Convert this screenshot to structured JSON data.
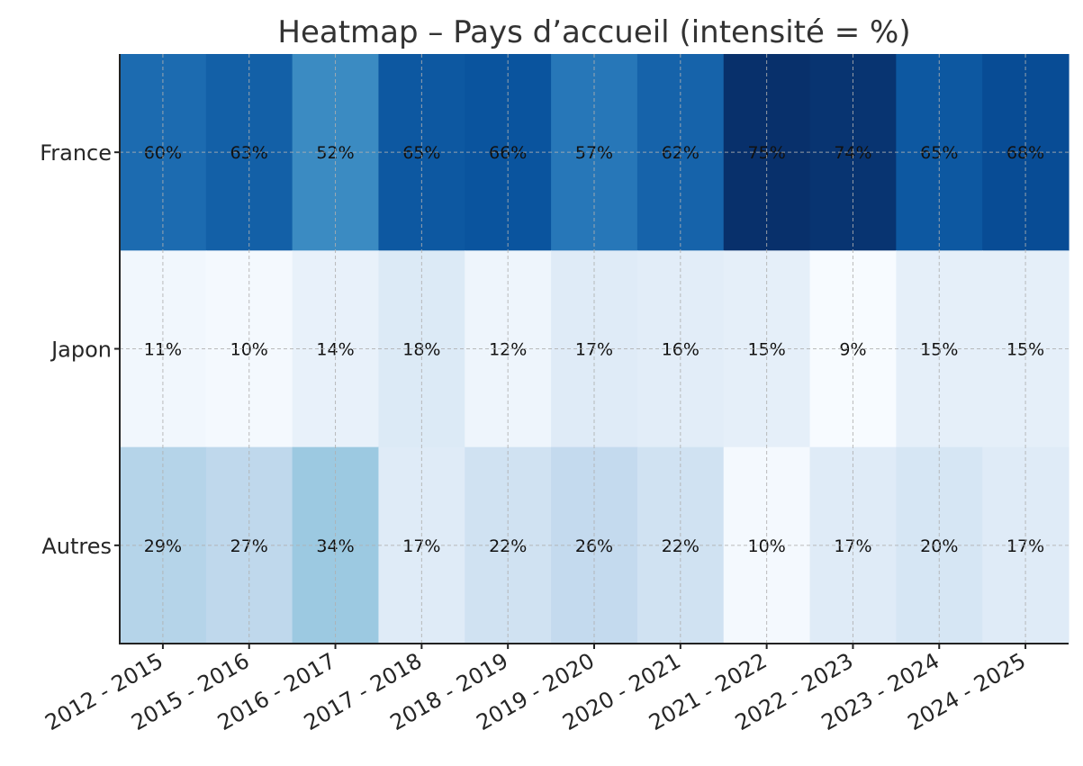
{
  "chart_data": {
    "type": "heatmap",
    "title": "Heatmap – Pays d’accueil (intensité = %)",
    "colormap": "Blues",
    "value_unit": "%",
    "grid": true,
    "x": [
      "2012 - 2015",
      "2015 - 2016",
      "2016 - 2017",
      "2017 - 2018",
      "2018 - 2019",
      "2019 - 2020",
      "2020 - 2021",
      "2021 - 2022",
      "2022 - 2023",
      "2023 - 2024",
      "2024 - 2025"
    ],
    "y": [
      "France",
      "Japon",
      "Autres"
    ],
    "values": [
      [
        60,
        63,
        52,
        65,
        66,
        57,
        62,
        75,
        74,
        65,
        68
      ],
      [
        11,
        10,
        14,
        18,
        12,
        17,
        16,
        15,
        9,
        15,
        15
      ],
      [
        29,
        27,
        34,
        17,
        22,
        26,
        22,
        10,
        17,
        20,
        17
      ]
    ],
    "cell_labels": [
      [
        "60%",
        "63%",
        "52%",
        "65%",
        "66%",
        "57%",
        "62%",
        "75%",
        "74%",
        "65%",
        "68%"
      ],
      [
        "11%",
        "10%",
        "14%",
        "18%",
        "12%",
        "17%",
        "16%",
        "15%",
        "9%",
        "15%",
        "15%"
      ],
      [
        "29%",
        "27%",
        "34%",
        "17%",
        "22%",
        "26%",
        "22%",
        "10%",
        "17%",
        "20%",
        "17%"
      ]
    ]
  }
}
